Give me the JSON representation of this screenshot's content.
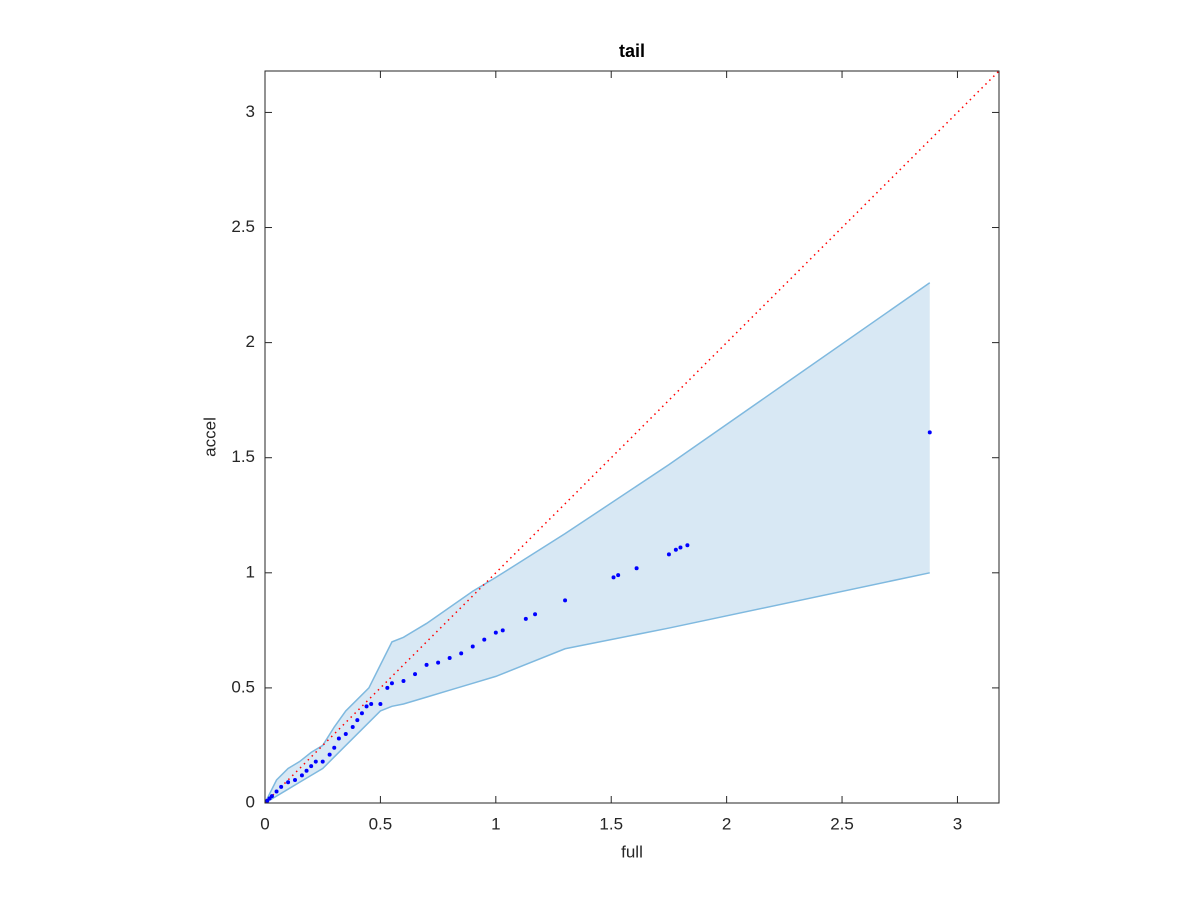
{
  "chart_data": {
    "type": "scatter",
    "title": "tail",
    "xlabel": "full",
    "ylabel": "accel",
    "xlim": [
      0,
      3.18
    ],
    "ylim": [
      0,
      3.18
    ],
    "xticks": [
      0,
      0.5,
      1,
      1.5,
      2,
      2.5,
      3
    ],
    "yticks": [
      0,
      0.5,
      1,
      1.5,
      2,
      2.5,
      3
    ],
    "band": {
      "color": "#d8e8f4",
      "edge_color": "#7fb9df",
      "x": [
        0,
        0.05,
        0.1,
        0.15,
        0.2,
        0.25,
        0.3,
        0.35,
        0.4,
        0.45,
        0.5,
        0.55,
        0.6,
        0.7,
        0.8,
        0.9,
        1.0,
        1.3,
        1.75,
        2.88
      ],
      "upper": [
        0,
        0.1,
        0.15,
        0.18,
        0.22,
        0.25,
        0.33,
        0.4,
        0.45,
        0.5,
        0.6,
        0.7,
        0.72,
        0.78,
        0.85,
        0.92,
        0.98,
        1.17,
        1.47,
        2.26
      ],
      "lower": [
        0,
        0.03,
        0.06,
        0.09,
        0.12,
        0.15,
        0.2,
        0.25,
        0.3,
        0.35,
        0.4,
        0.42,
        0.43,
        0.46,
        0.49,
        0.52,
        0.55,
        0.67,
        0.76,
        1.0
      ]
    },
    "reference": {
      "color": "#ff0000",
      "x": [
        0,
        3.18
      ],
      "y": [
        0,
        3.18
      ]
    },
    "points": {
      "color": "#0000ff",
      "x": [
        0.01,
        0.02,
        0.03,
        0.05,
        0.07,
        0.1,
        0.13,
        0.16,
        0.18,
        0.2,
        0.22,
        0.25,
        0.28,
        0.3,
        0.32,
        0.35,
        0.38,
        0.4,
        0.42,
        0.44,
        0.46,
        0.5,
        0.53,
        0.55,
        0.6,
        0.65,
        0.7,
        0.75,
        0.8,
        0.85,
        0.9,
        0.95,
        1.0,
        1.03,
        1.13,
        1.17,
        1.3,
        1.51,
        1.53,
        1.61,
        1.75,
        1.78,
        1.8,
        1.83,
        2.88
      ],
      "y": [
        0.01,
        0.02,
        0.03,
        0.05,
        0.07,
        0.09,
        0.1,
        0.12,
        0.14,
        0.16,
        0.18,
        0.18,
        0.21,
        0.24,
        0.28,
        0.3,
        0.33,
        0.36,
        0.39,
        0.42,
        0.43,
        0.43,
        0.5,
        0.52,
        0.53,
        0.56,
        0.6,
        0.61,
        0.63,
        0.65,
        0.68,
        0.71,
        0.74,
        0.75,
        0.8,
        0.82,
        0.88,
        0.98,
        0.99,
        1.02,
        1.08,
        1.1,
        1.11,
        1.12,
        1.61
      ]
    }
  }
}
